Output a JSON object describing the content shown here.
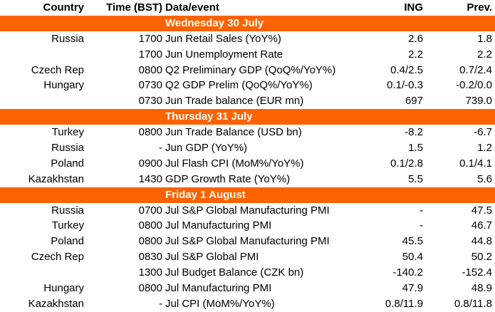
{
  "header": {
    "country": "Country",
    "time": "Time (BST)",
    "event": "Data/event",
    "ing": "ING",
    "prev": "Prev."
  },
  "days": [
    {
      "label": "Wednesday 30 July",
      "rows": [
        {
          "country": "Russia",
          "time": "1700",
          "event": "Jun Retail Sales (YoY%)",
          "ing": "2.6",
          "prev": "1.8"
        },
        {
          "country": "",
          "time": "1700",
          "event": "Jun Unemployment Rate",
          "ing": "2.2",
          "prev": "2.2"
        },
        {
          "country": "Czech Rep",
          "time": "0800",
          "event": "Q2 Preliminary GDP (QoQ%/YoY%)",
          "ing": "0.4/2.5",
          "prev": "0.7/2.4"
        },
        {
          "country": "Hungary",
          "time": "0730",
          "event": "Q2 GDP Prelim (QoQ%/YoY%)",
          "ing": "0.1/-0.3",
          "prev": "-0.2/0.0"
        },
        {
          "country": "",
          "time": "0730",
          "event": "Jun Trade balance (EUR mn)",
          "ing": "697",
          "prev": "739.0"
        }
      ]
    },
    {
      "label": "Thursday 31 July",
      "rows": [
        {
          "country": "Turkey",
          "time": "0800",
          "event": "Jun Trade Balance (USD bn)",
          "ing": "-8.2",
          "prev": "-6.7"
        },
        {
          "country": "Russia",
          "time": "-",
          "event": "Jun GDP (YoY%)",
          "ing": "1.5",
          "prev": "1.2"
        },
        {
          "country": "Poland",
          "time": "0900",
          "event": "Jul Flash CPI (MoM%/YoY%)",
          "ing": "0.1/2.8",
          "prev": "0.1/4.1"
        },
        {
          "country": "Kazakhstan",
          "time": "1430",
          "event": "GDP Growth Rate (YoY%)",
          "ing": "5.5",
          "prev": "5.6"
        }
      ]
    },
    {
      "label": "Friday 1 August",
      "rows": [
        {
          "country": "Russia",
          "time": "0700",
          "event": "Jul S&P Global Manufacturing PMI",
          "ing": "-",
          "prev": "47.5"
        },
        {
          "country": "Turkey",
          "time": "0800",
          "event": "Jul Manufacturing PMI",
          "ing": "-",
          "prev": "46.7"
        },
        {
          "country": "Poland",
          "time": "0800",
          "event": "Jul S&P Global Manufacturing PMI",
          "ing": "45.5",
          "prev": "44.8"
        },
        {
          "country": "Czech Rep",
          "time": "0830",
          "event": "Jul S&P Global PMI",
          "ing": "50.4",
          "prev": "50.2"
        },
        {
          "country": "",
          "time": "1300",
          "event": "Jul Budget Balance (CZK bn)",
          "ing": "-140.2",
          "prev": "-152.4"
        },
        {
          "country": "Hungary",
          "time": "0800",
          "event": "Jul Manufacturing PMI",
          "ing": "47.9",
          "prev": "48.9"
        },
        {
          "country": "Kazakhstan",
          "time": "-",
          "event": "Jul CPI (MoM%/YoY%)",
          "ing": "0.8/11.9",
          "prev": "0.8/11.8"
        }
      ]
    }
  ],
  "colors": {
    "day_banner_bg": "#ff6200",
    "day_banner_text": "#ffffff",
    "text": "#000000"
  }
}
